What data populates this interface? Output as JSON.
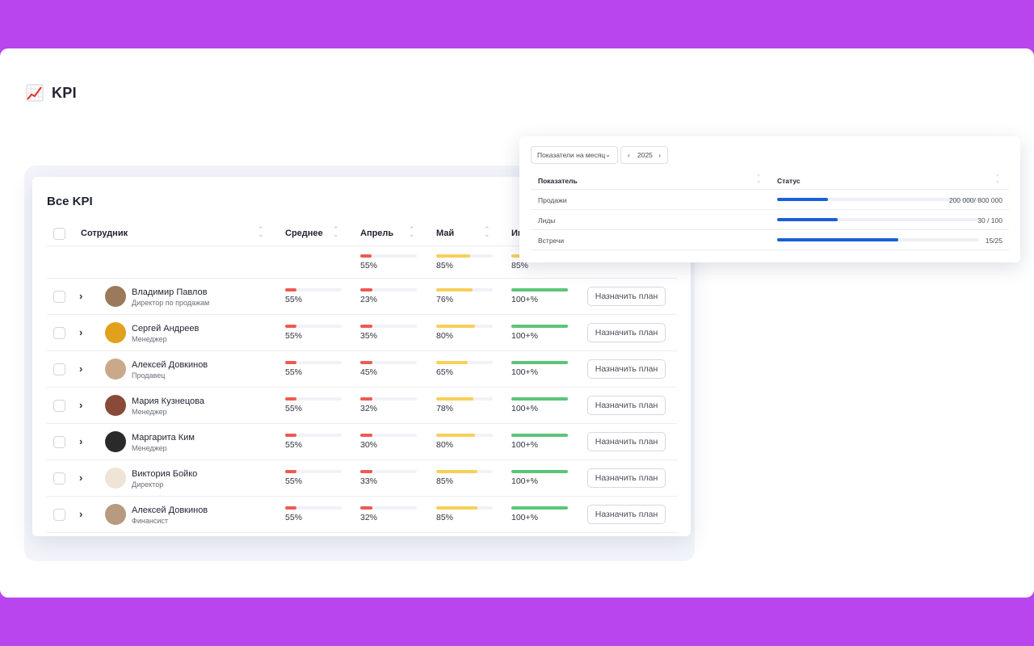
{
  "page": {
    "title": "KPI",
    "title_icon": "chart-increasing-icon"
  },
  "colors": {
    "background": "#b845ee",
    "red": "#ee5a52",
    "yellow": "#f7cf5a",
    "green": "#5cc47a",
    "blue": "#1a5fd6"
  },
  "card": {
    "title": "Все KPI",
    "columns": {
      "employee": "Сотрудник",
      "average": "Среднее",
      "april": "Апрель",
      "may": "Май",
      "june": "Ию"
    },
    "summary": {
      "april": "55%",
      "april_level": 0.2,
      "may": "85%",
      "may_level": 0.6,
      "june": "85%"
    },
    "rows": [
      {
        "name": "Владимир Павлов",
        "role": "Директор по продажам",
        "average": "55%",
        "april": "23%",
        "may": "76%",
        "june": "100+%",
        "button": "Назначить план",
        "avatar_color": "#9a7a5a"
      },
      {
        "name": "Сергей Андреев",
        "role": "Менеджер",
        "average": "55%",
        "april": "35%",
        "may": "80%",
        "june": "100+%",
        "button": "Назначить план",
        "avatar_color": "#e0a11c"
      },
      {
        "name": "Алексей Довкинов",
        "role": "Продавец",
        "average": "55%",
        "april": "45%",
        "may": "65%",
        "june": "100+%",
        "button": "Назначить план",
        "avatar_color": "#c9a98a"
      },
      {
        "name": "Мария Кузнецова",
        "role": "Менеджер",
        "average": "55%",
        "april": "32%",
        "may": "78%",
        "june": "100+%",
        "button": "Назначить план",
        "avatar_color": "#8a4a3a"
      },
      {
        "name": "Маргарита Ким",
        "role": "Менеджер",
        "average": "55%",
        "april": "30%",
        "may": "80%",
        "june": "100+%",
        "button": "Назначить план",
        "avatar_color": "#2a2a2a"
      },
      {
        "name": "Виктория Бойко",
        "role": "Директор",
        "average": "55%",
        "april": "33%",
        "may": "85%",
        "june": "100+%",
        "button": "Назначить план",
        "avatar_color": "#efe4d6"
      },
      {
        "name": "Алексей Довкинов",
        "role": "Финансист",
        "average": "55%",
        "april": "32%",
        "may": "85%",
        "june": "100+%",
        "button": "Назначить план",
        "avatar_color": "#b89a80"
      }
    ]
  },
  "panel": {
    "period_select": "Показатели на месяц",
    "year": "2025",
    "columns": {
      "indicator": "Показатель",
      "status": "Статус"
    },
    "rows": [
      {
        "label": "Продажи",
        "value": "200 000/ 800 000",
        "fraction": 0.25
      },
      {
        "label": "Лиды",
        "value": "30 / 100",
        "fraction": 0.3
      },
      {
        "label": "Встречи",
        "value": "15/25",
        "fraction": 0.6
      }
    ]
  }
}
